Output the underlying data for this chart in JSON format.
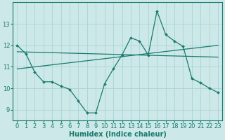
{
  "title": "",
  "xlabel": "Humidex (Indice chaleur)",
  "background_color": "#cce8e8",
  "line_color": "#1a7a6e",
  "xlim": [
    -0.5,
    23.5
  ],
  "ylim": [
    8.5,
    14.0
  ],
  "yticks": [
    9,
    10,
    11,
    12,
    13
  ],
  "xticks": [
    0,
    1,
    2,
    3,
    4,
    5,
    6,
    7,
    8,
    9,
    10,
    11,
    12,
    13,
    14,
    15,
    16,
    17,
    18,
    19,
    20,
    21,
    22,
    23
  ],
  "series1_x": [
    0,
    1,
    2,
    3,
    4,
    5,
    6,
    7,
    8,
    9,
    10,
    11,
    12,
    13,
    14,
    15,
    16,
    17,
    18,
    19,
    20,
    21,
    22,
    23
  ],
  "series1_y": [
    12.0,
    11.6,
    10.75,
    10.3,
    10.3,
    10.1,
    9.95,
    9.4,
    8.85,
    8.85,
    10.2,
    10.9,
    11.55,
    12.35,
    12.2,
    11.55,
    13.6,
    12.5,
    12.2,
    11.95,
    10.45,
    10.25,
    10.0,
    9.8
  ],
  "series2_x": [
    0,
    23
  ],
  "series2_y": [
    10.9,
    12.0
  ],
  "series3_x": [
    0,
    23
  ],
  "series3_y": [
    11.7,
    11.45
  ],
  "grid_color": "#aad4d4",
  "tick_fontsize": 6,
  "label_fontsize": 7
}
